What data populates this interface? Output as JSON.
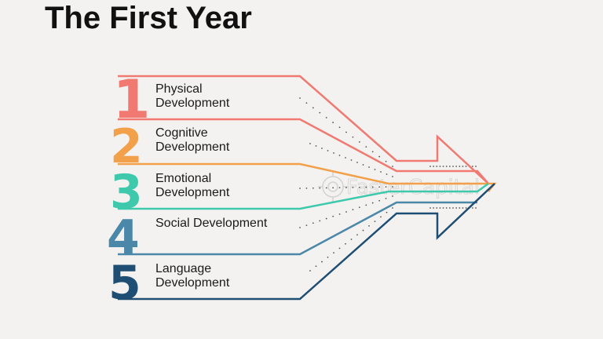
{
  "title": "The First Year",
  "items": [
    {
      "number": "1",
      "line1": "Physical",
      "line2": "Development",
      "color": "#f07a72"
    },
    {
      "number": "2",
      "line1": "Cognitive",
      "line2": "Development",
      "color": "#f2a04a"
    },
    {
      "number": "3",
      "line1": "Emotional",
      "line2": "Development",
      "color": "#3ec9ad"
    },
    {
      "number": "4",
      "line1": "Social Development",
      "line2": "",
      "color": "#4a87a8"
    },
    {
      "number": "5",
      "line1": "Language",
      "line2": "Development",
      "color": "#1e4e73"
    }
  ],
  "watermark": {
    "text": "FasterCapital",
    "icon": "gear-icon"
  }
}
